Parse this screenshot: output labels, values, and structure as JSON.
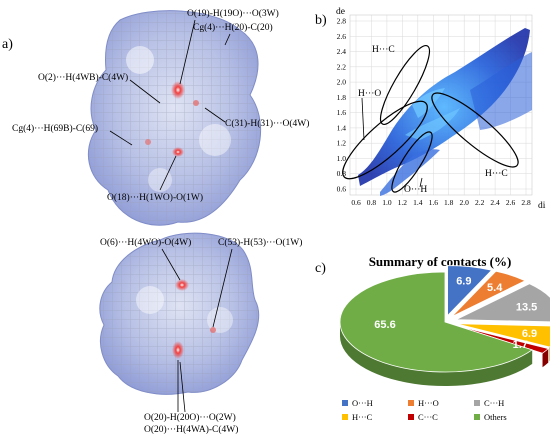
{
  "panels": {
    "a": "a)",
    "b": "b)",
    "c": "c)"
  },
  "surface_top_labels": [
    "O(19)-H(19O)···O(3W)",
    "Cg(4)···H(20)-C(20)",
    "O(2)···H(4WB)-C(4W)",
    "C(31)-H(31)···O(4W)",
    "Cg(4)···H(69B)-C(69)",
    "O(18)···H(1WO)-O(1W)"
  ],
  "surface_bottom_labels": [
    "O(6)···H(4WO)-O(4W)",
    "C(53)-H(53)···O(1W)",
    "O(20)-H(20O)···O(2W)",
    "O(20)···H(4WA)-C(4W)"
  ],
  "fingerprint": {
    "ylabel": "de",
    "xlabel": "di",
    "yticks": [
      "2.8",
      "2.6",
      "2.4",
      "2.2",
      "2.0",
      "1.8",
      "1.6",
      "1.4",
      "1.2",
      "1.0",
      "0.8",
      "0.6"
    ],
    "xticks": [
      "0.6",
      "0.8",
      "1.0",
      "1.2",
      "1.4",
      "1.6",
      "1.8",
      "2.0",
      "2.2",
      "2.4",
      "2.6",
      "2.8"
    ],
    "region_labels": [
      "H···C",
      "H···O",
      "O···H",
      "H···C"
    ]
  },
  "chart_data": {
    "type": "pie",
    "title": "Summary of contacts (%)",
    "categories": [
      "O···H",
      "H···O",
      "C···H",
      "H···C",
      "C···C",
      "Others"
    ],
    "values": [
      6.9,
      5.4,
      13.5,
      6.9,
      1.7,
      65.6
    ],
    "colors": [
      "#4472c4",
      "#ed7d31",
      "#a5a5a5",
      "#ffc000",
      "#c00000",
      "#70ad47"
    ],
    "legend_position": "bottom"
  }
}
